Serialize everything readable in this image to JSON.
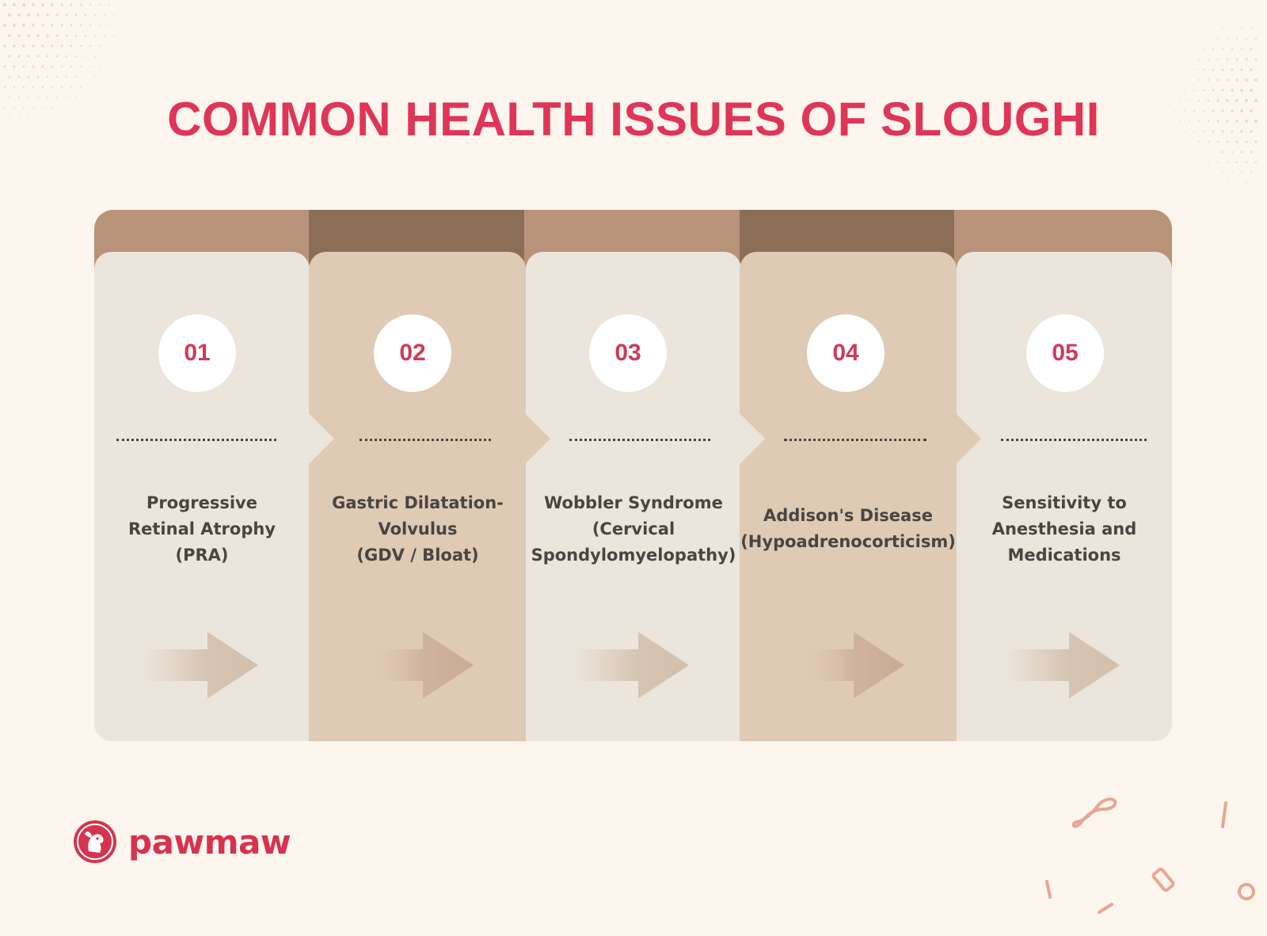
{
  "title": "COMMON HEALTH ISSUES OF SLOUGHI",
  "colors": {
    "background": "#fdf6ee",
    "accent": "#df3557",
    "panel_light": "#ece5dc",
    "panel_dark": "#dfcab5",
    "top_light": "#b8937a",
    "top_dark": "#8c6e57",
    "number_color": "#cf3a59",
    "label_color": "#4b4441"
  },
  "steps": [
    {
      "number": "01",
      "label": "Progressive\nRetinal Atrophy\n(PRA)"
    },
    {
      "number": "02",
      "label": "Gastric Dilatation-\nVolvulus\n(GDV / Bloat)"
    },
    {
      "number": "03",
      "label": "Wobbler Syndrome\n(Cervical\nSpondylomyelopathy)"
    },
    {
      "number": "04",
      "label": "Addison's Disease\n(Hypoadrenocorticism)"
    },
    {
      "number": "05",
      "label": "Sensitivity to\nAnesthesia and\nMedications"
    }
  ],
  "icons": {
    "arrow": "right-arrow-icon",
    "logo": "pawmaw-dog-logo-icon"
  },
  "brand": {
    "name": "pawmaw"
  }
}
